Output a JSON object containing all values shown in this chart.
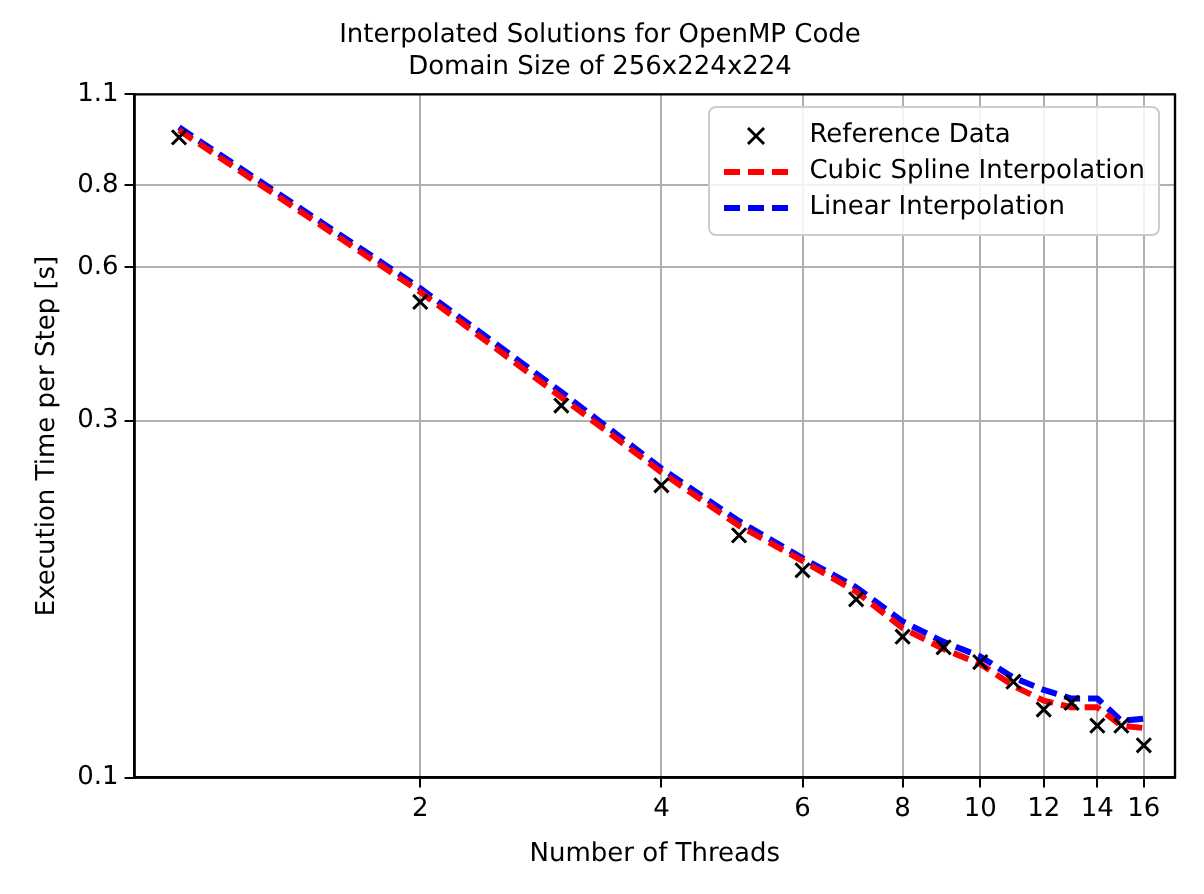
{
  "chart_data": {
    "type": "line",
    "title": "Interpolated Solutions for OpenMP Code",
    "subtitle": "Domain Size of 256x224x224",
    "xlabel": "Number of Threads",
    "ylabel": "Execution Time per Step [s]",
    "log": "xy",
    "grid": true,
    "legend": "top right",
    "xlim": [
      0.88,
      17.5
    ],
    "xticks": [
      2,
      4,
      6,
      8,
      10,
      12,
      14,
      16
    ],
    "ylim": [
      0.1,
      1.1
    ],
    "yticks": [
      0.1,
      {
        "value": 0.35,
        "label": "0.3"
      },
      0.6,
      0.8,
      1.1
    ],
    "x": [
      1,
      2,
      3,
      4,
      5,
      6,
      7,
      8,
      9,
      10,
      11,
      12,
      13,
      14,
      15,
      16
    ],
    "series": [
      {
        "name": "Reference Data",
        "type": "scatter",
        "color": "#000000",
        "marker": "cross",
        "values": [
          0.946,
          0.531,
          0.369,
          0.279,
          0.234,
          0.207,
          0.187,
          0.164,
          0.158,
          0.15,
          0.14,
          0.127,
          0.13,
          0.12,
          0.12,
          0.112
        ]
      },
      {
        "name": "Cubic Spline Interpolation",
        "type": "line",
        "color": "#ff0000",
        "marker": "none",
        "line_style": "dashed",
        "values": [
          0.97,
          0.55,
          0.38,
          0.292,
          0.242,
          0.214,
          0.192,
          0.169,
          0.157,
          0.149,
          0.138,
          0.131,
          0.128,
          0.128,
          0.12,
          0.119
        ]
      },
      {
        "name": "Linear Interpolation",
        "type": "line",
        "color": "#0000ff",
        "marker": "none",
        "line_style": "dashed",
        "values": [
          0.98,
          0.557,
          0.387,
          0.296,
          0.246,
          0.216,
          0.195,
          0.173,
          0.161,
          0.153,
          0.142,
          0.136,
          0.132,
          0.132,
          0.122,
          0.123
        ]
      }
    ]
  }
}
